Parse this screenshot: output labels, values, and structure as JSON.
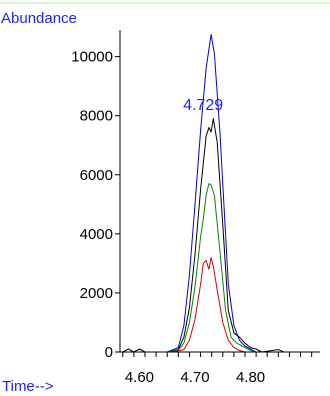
{
  "chart_data": {
    "type": "line",
    "ylabel": "Abundance",
    "xlabel": "Time-->",
    "xlim": [
      4.565,
      4.925
    ],
    "ylim": [
      0,
      10900
    ],
    "x_ticks": [
      "4.60",
      "4.70",
      "4.80"
    ],
    "x_tick_values": [
      4.6,
      4.7,
      4.8
    ],
    "y_ticks": [
      "0",
      "2000",
      "4000",
      "6000",
      "8000",
      "10000"
    ],
    "y_tick_values": [
      0,
      2000,
      4000,
      6000,
      8000,
      10000
    ],
    "annotations": [
      {
        "text": "4.729",
        "x": 4.729,
        "y": 8400
      }
    ],
    "colors": {
      "accent": "#1f1fff",
      "axis": "#000000",
      "border": "#a8e8a8"
    },
    "series": [
      {
        "color": "#0000dd",
        "points": [
          [
            4.57,
            0
          ],
          [
            4.65,
            0
          ],
          [
            4.67,
            150
          ],
          [
            4.68,
            900
          ],
          [
            4.69,
            2600
          ],
          [
            4.7,
            5000
          ],
          [
            4.71,
            7500
          ],
          [
            4.72,
            9600
          ],
          [
            4.729,
            10750
          ],
          [
            4.735,
            10100
          ],
          [
            4.745,
            7400
          ],
          [
            4.76,
            2300
          ],
          [
            4.77,
            900
          ],
          [
            4.78,
            400
          ],
          [
            4.79,
            200
          ],
          [
            4.8,
            100
          ],
          [
            4.81,
            0
          ],
          [
            4.92,
            0
          ]
        ]
      },
      {
        "color": "#000000",
        "points": [
          [
            4.57,
            0
          ],
          [
            4.58,
            100
          ],
          [
            4.59,
            0
          ],
          [
            4.6,
            100
          ],
          [
            4.61,
            0
          ],
          [
            4.65,
            0
          ],
          [
            4.67,
            80
          ],
          [
            4.68,
            500
          ],
          [
            4.69,
            1500
          ],
          [
            4.7,
            3300
          ],
          [
            4.71,
            5500
          ],
          [
            4.72,
            7300
          ],
          [
            4.725,
            7600
          ],
          [
            4.729,
            7450
          ],
          [
            4.733,
            7900
          ],
          [
            4.74,
            7100
          ],
          [
            4.75,
            4300
          ],
          [
            4.76,
            1400
          ],
          [
            4.77,
            650
          ],
          [
            4.78,
            500
          ],
          [
            4.79,
            300
          ],
          [
            4.8,
            150
          ],
          [
            4.81,
            100
          ],
          [
            4.82,
            0
          ],
          [
            4.85,
            80
          ],
          [
            4.86,
            0
          ],
          [
            4.92,
            0
          ]
        ]
      },
      {
        "color": "#008800",
        "points": [
          [
            4.57,
            0
          ],
          [
            4.65,
            0
          ],
          [
            4.67,
            60
          ],
          [
            4.68,
            300
          ],
          [
            4.69,
            1000
          ],
          [
            4.7,
            2200
          ],
          [
            4.71,
            3900
          ],
          [
            4.715,
            4500
          ],
          [
            4.72,
            5300
          ],
          [
            4.725,
            5700
          ],
          [
            4.729,
            5650
          ],
          [
            4.735,
            5300
          ],
          [
            4.745,
            3400
          ],
          [
            4.755,
            1400
          ],
          [
            4.765,
            500
          ],
          [
            4.775,
            300
          ],
          [
            4.785,
            200
          ],
          [
            4.8,
            50
          ],
          [
            4.81,
            0
          ],
          [
            4.92,
            0
          ]
        ]
      },
      {
        "color": "#dd0000",
        "points": [
          [
            4.57,
            0
          ],
          [
            4.66,
            0
          ],
          [
            4.68,
            80
          ],
          [
            4.69,
            400
          ],
          [
            4.7,
            1100
          ],
          [
            4.71,
            2300
          ],
          [
            4.715,
            3000
          ],
          [
            4.72,
            3100
          ],
          [
            4.725,
            2800
          ],
          [
            4.729,
            3200
          ],
          [
            4.733,
            2900
          ],
          [
            4.74,
            2100
          ],
          [
            4.75,
            1000
          ],
          [
            4.76,
            400
          ],
          [
            4.77,
            150
          ],
          [
            4.78,
            50
          ],
          [
            4.79,
            0
          ],
          [
            4.92,
            0
          ]
        ]
      }
    ]
  }
}
